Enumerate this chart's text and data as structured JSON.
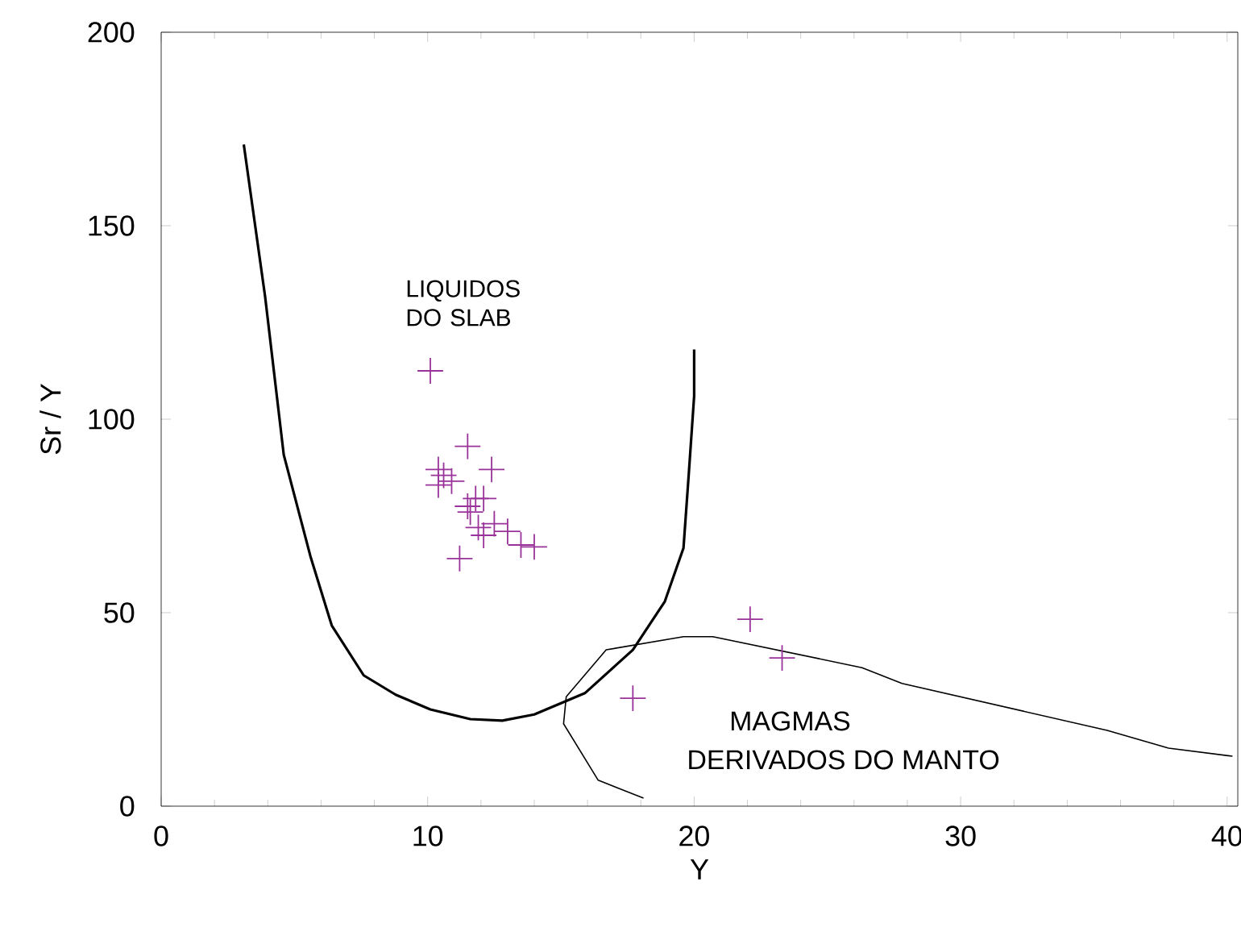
{
  "chart_data": {
    "type": "scatter",
    "xlabel": "Y",
    "ylabel": "Sr / Y",
    "xlim": [
      0,
      40.4
    ],
    "ylim": [
      0,
      200
    ],
    "xticks": [
      0,
      10,
      20,
      30,
      40
    ],
    "yticks": [
      0,
      50,
      100,
      150,
      200
    ],
    "grid": false,
    "annotations": [
      "LIQUIDOS DO SLAB",
      "MAGMAS",
      "DERIVADOS DO MANTO"
    ],
    "series": [
      {
        "marker": "cross",
        "color": "#993399",
        "x": [
          10.1,
          11.5,
          12.4,
          10.4,
          10.6,
          10.9,
          10.4,
          11.8,
          12.1,
          11.5,
          11.6,
          12.5,
          11.9,
          13.0,
          12.1,
          13.5,
          14.0,
          11.2,
          22.1,
          23.3,
          17.7
        ],
        "values": [
          112.5,
          93,
          87,
          87,
          85.5,
          84,
          83,
          79.5,
          79.5,
          77.5,
          76,
          73,
          72,
          71,
          70,
          67.5,
          67,
          64,
          48.3,
          38.3,
          27.9
        ]
      },
      {
        "type": "line",
        "color": "#000000",
        "line_style": "solid",
        "x": [
          3.1,
          3.9,
          4.6,
          5.6,
          6.4,
          7.6,
          8.8,
          10.1,
          11.6,
          12.8,
          14.0,
          15.9,
          17.7,
          18.9,
          19.6,
          19.8,
          20.0,
          20.0
        ],
        "values": [
          171,
          131.7,
          90.8,
          64.6,
          46.7,
          33.8,
          28.8,
          25,
          22.5,
          22.1,
          23.7,
          29.2,
          40.4,
          52.9,
          66.7,
          86,
          106,
          118
        ]
      },
      {
        "type": "line",
        "color": "#000000",
        "line_style": "solid",
        "x": [
          18.1,
          16.4,
          15.1,
          15.2,
          16.7,
          19.6,
          20.7,
          26.3,
          27.8,
          35.5,
          37.8,
          40.2
        ],
        "values": [
          2.1,
          6.7,
          21.3,
          28.3,
          40.4,
          43.8,
          43.8,
          35.8,
          31.7,
          19.6,
          15,
          12.9
        ]
      }
    ]
  }
}
